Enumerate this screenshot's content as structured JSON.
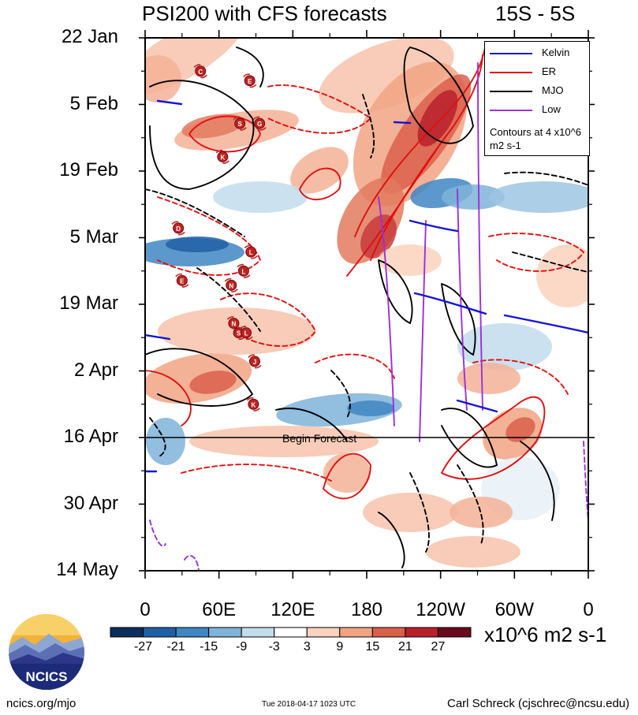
{
  "header": {
    "title": "PSI200 with CFS forecasts",
    "region": "15S - 5S"
  },
  "chart_data": {
    "type": "heatmap",
    "title": "PSI200 with CFS forecasts",
    "subtitle": "15S - 5S",
    "x_axis": {
      "ticks": [
        "0",
        "60E",
        "120E",
        "180",
        "120W",
        "60W",
        "0"
      ],
      "tick_values": [
        0,
        60,
        120,
        180,
        240,
        300,
        360
      ],
      "range": [
        0,
        360
      ]
    },
    "y_axis": {
      "ticks": [
        "22 Jan",
        "5 Feb",
        "19 Feb",
        "5 Mar",
        "19 Mar",
        "2 Apr",
        "16 Apr",
        "30 Apr",
        "14 May"
      ],
      "range": [
        "2018-01-22",
        "2018-05-14"
      ],
      "reversed": true
    },
    "forecast_start": "2018-04-16",
    "forecast_label": "Begin Forecast",
    "colorbar": {
      "levels": [
        -27,
        -21,
        -15,
        -9,
        -3,
        3,
        9,
        15,
        21,
        27
      ],
      "colors": [
        "#0d2e5c",
        "#1f5fa6",
        "#3f86c2",
        "#7fb3d9",
        "#c2dcec",
        "#ffffff",
        "#fbd2bd",
        "#f1a383",
        "#d9604b",
        "#b8202b",
        "#6b0a1a"
      ],
      "units": "x10^6 m2 s-1"
    },
    "legend": {
      "entries": [
        {
          "name": "Kelvin",
          "color": "#1414d4"
        },
        {
          "name": "ER",
          "color": "#e01010"
        },
        {
          "name": "MJO",
          "color": "#000000"
        },
        {
          "name": "Low",
          "color": "#9b30d9"
        }
      ],
      "note": "Contours at 4 x10^6 m2 s-1",
      "placement": "top-right"
    },
    "tc_markers": [
      {
        "letter": "C",
        "x": 45,
        "date": "2018-01-29"
      },
      {
        "letter": "E",
        "x": 85,
        "date": "2018-01-31"
      },
      {
        "letter": "S",
        "x": 77,
        "date": "2018-02-09"
      },
      {
        "letter": "G",
        "x": 93,
        "date": "2018-02-09"
      },
      {
        "letter": "K",
        "x": 63,
        "date": "2018-02-16"
      },
      {
        "letter": "D",
        "x": 27,
        "date": "2018-03-03"
      },
      {
        "letter": "E",
        "x": 30,
        "date": "2018-03-14"
      },
      {
        "letter": "L",
        "x": 86,
        "date": "2018-03-08"
      },
      {
        "letter": "L",
        "x": 80,
        "date": "2018-03-12"
      },
      {
        "letter": "N",
        "x": 70,
        "date": "2018-03-15"
      },
      {
        "letter": "N",
        "x": 72,
        "date": "2018-03-23"
      },
      {
        "letter": "S",
        "x": 76,
        "date": "2018-03-25"
      },
      {
        "letter": "L",
        "x": 82,
        "date": "2018-03-25"
      },
      {
        "letter": "J",
        "x": 89,
        "date": "2018-03-31"
      },
      {
        "letter": "K",
        "x": 88,
        "date": "2018-04-09"
      }
    ]
  },
  "footer": {
    "site": "ncics.org/mjo",
    "timestamp": "Tue 2018-04-17 1023 UTC",
    "author": "Carl Schreck (cjschrec@ncsu.edu)",
    "logo_text": "NCICS"
  }
}
